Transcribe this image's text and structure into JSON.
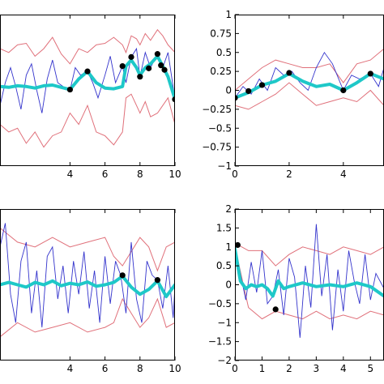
{
  "chart_data": [
    {
      "type": "line",
      "panel": "top-left",
      "xlim": [
        0,
        10
      ],
      "ylim": [
        -1,
        1
      ],
      "xticks": [
        4,
        6,
        8,
        10
      ],
      "yticks": [],
      "observations": {
        "x": [
          4,
          5,
          7,
          7.5,
          8,
          8.5,
          9,
          9.2,
          9.4,
          10
        ],
        "y": [
          0.01,
          0.25,
          0.32,
          0.44,
          0.18,
          0.29,
          0.48,
          0.33,
          0.27,
          -0.12
        ]
      },
      "series": [
        {
          "role": "upper-band",
          "x": [
            0,
            0.5,
            1,
            1.5,
            2,
            2.5,
            3,
            3.5,
            4,
            4.5,
            5,
            5.5,
            6,
            6.5,
            7,
            7.2,
            7.5,
            7.8,
            8,
            8.3,
            8.6,
            9,
            9.3,
            9.6,
            10
          ],
          "y": [
            0.55,
            0.5,
            0.6,
            0.62,
            0.45,
            0.55,
            0.7,
            0.48,
            0.35,
            0.55,
            0.5,
            0.6,
            0.62,
            0.7,
            0.6,
            0.5,
            0.72,
            0.68,
            0.6,
            0.75,
            0.66,
            0.8,
            0.72,
            0.6,
            0.5
          ]
        },
        {
          "role": "lower-band",
          "x": [
            0,
            0.5,
            1,
            1.5,
            2,
            2.5,
            3,
            3.5,
            4,
            4.5,
            5,
            5.5,
            6,
            6.5,
            7,
            7.2,
            7.5,
            7.8,
            8,
            8.3,
            8.6,
            9,
            9.3,
            9.6,
            10
          ],
          "y": [
            -0.45,
            -0.55,
            -0.5,
            -0.7,
            -0.55,
            -0.75,
            -0.6,
            -0.55,
            -0.3,
            -0.45,
            -0.2,
            -0.55,
            -0.6,
            -0.72,
            -0.55,
            -0.1,
            -0.05,
            -0.2,
            -0.3,
            -0.15,
            -0.35,
            -0.3,
            -0.2,
            -0.1,
            -0.45
          ]
        },
        {
          "role": "sample",
          "x": [
            0,
            0.3,
            0.6,
            0.9,
            1.2,
            1.5,
            1.8,
            2.1,
            2.4,
            2.7,
            3,
            3.3,
            3.6,
            4,
            4.3,
            4.6,
            5,
            5.3,
            5.6,
            6,
            6.3,
            6.6,
            7,
            7.2,
            7.5,
            7.8,
            8,
            8.3,
            8.6,
            9,
            9.3,
            9.6,
            10
          ],
          "y": [
            -0.2,
            0.1,
            0.3,
            0.05,
            -0.25,
            0.2,
            0.35,
            0,
            -0.3,
            0.15,
            0.4,
            0.1,
            0.05,
            0.0,
            0.3,
            0.2,
            0.25,
            0.1,
            -0.1,
            0.2,
            0.45,
            0.1,
            0.32,
            0.1,
            0.44,
            0.55,
            0.18,
            0.5,
            0.3,
            0.48,
            0.3,
            0.5,
            -0.12
          ]
        },
        {
          "role": "mean",
          "x": [
            0,
            0.5,
            1,
            1.5,
            2,
            2.5,
            3,
            3.5,
            4,
            4.5,
            5,
            5.5,
            6,
            6.5,
            7,
            7.2,
            7.5,
            7.8,
            8,
            8.3,
            8.6,
            9,
            9.3,
            9.6,
            10
          ],
          "y": [
            0.05,
            0.04,
            0.06,
            0.05,
            0.03,
            0.06,
            0.07,
            0.04,
            0.01,
            0.15,
            0.25,
            0.1,
            0.03,
            0.02,
            0.05,
            0.32,
            0.4,
            0.3,
            0.2,
            0.3,
            0.35,
            0.45,
            0.32,
            0.18,
            -0.12
          ]
        }
      ]
    },
    {
      "type": "line",
      "panel": "top-right",
      "xlim": [
        0,
        5.5
      ],
      "ylim": [
        -1,
        1
      ],
      "xticks": [
        0,
        2,
        4
      ],
      "xtick_labels": [
        "0",
        "2",
        "4"
      ],
      "yticks": [
        -1,
        -0.75,
        -0.5,
        -0.25,
        0,
        0.25,
        0.5,
        0.75,
        1
      ],
      "ytick_labels": [
        "−1",
        "−0.75",
        "−0.5",
        "−0.25",
        "0",
        "0.25",
        "0.5",
        "0.75",
        "1"
      ],
      "observations": {
        "x": [
          0,
          0.5,
          1,
          2,
          4,
          5
        ],
        "y": [
          -0.1,
          -0.01,
          0.07,
          0.23,
          0.0,
          0.22
        ]
      },
      "series": [
        {
          "role": "upper-band",
          "x": [
            0,
            0.5,
            1,
            1.5,
            2,
            2.5,
            3,
            3.5,
            4,
            4.5,
            5,
            5.5
          ],
          "y": [
            0.0,
            0.15,
            0.3,
            0.4,
            0.35,
            0.3,
            0.3,
            0.35,
            0.1,
            0.35,
            0.4,
            0.55
          ]
        },
        {
          "role": "lower-band",
          "x": [
            0,
            0.5,
            1,
            1.5,
            2,
            2.5,
            3,
            3.5,
            4,
            4.5,
            5,
            5.5
          ],
          "y": [
            -0.2,
            -0.25,
            -0.15,
            -0.05,
            0.1,
            -0.05,
            -0.2,
            -0.15,
            -0.1,
            -0.15,
            0.0,
            -0.2
          ]
        },
        {
          "role": "sample",
          "x": [
            0,
            0.3,
            0.6,
            0.9,
            1.2,
            1.5,
            1.8,
            2.1,
            2.4,
            2.7,
            3,
            3.3,
            3.6,
            4,
            4.3,
            4.6,
            5,
            5.3,
            5.5
          ],
          "y": [
            -0.1,
            0.05,
            -0.05,
            0.15,
            0.0,
            0.3,
            0.2,
            0.25,
            0.1,
            0.0,
            0.3,
            0.5,
            0.35,
            0.0,
            0.2,
            0.15,
            0.22,
            0.05,
            0.3
          ]
        },
        {
          "role": "mean",
          "x": [
            0,
            0.5,
            1,
            1.5,
            2,
            2.5,
            3,
            3.5,
            4,
            4.5,
            5,
            5.5
          ],
          "y": [
            -0.1,
            -0.03,
            0.07,
            0.12,
            0.22,
            0.12,
            0.05,
            0.08,
            0.0,
            0.1,
            0.22,
            0.15
          ]
        }
      ]
    },
    {
      "type": "line",
      "panel": "bottom-left",
      "xlim": [
        0,
        10
      ],
      "ylim": [
        -1.6,
        1.6
      ],
      "xticks": [
        4,
        6,
        8,
        10
      ],
      "yticks": [],
      "observations": {
        "x": [
          7,
          9
        ],
        "y": [
          0.2,
          0.1
        ]
      },
      "series": [
        {
          "role": "upper-band",
          "x": [
            0,
            1,
            2,
            3,
            4,
            5,
            6,
            6.5,
            7,
            7.5,
            8,
            8.5,
            9,
            9.5,
            10
          ],
          "y": [
            1.2,
            0.9,
            0.8,
            1.0,
            0.8,
            0.9,
            1.0,
            0.6,
            0.4,
            0.7,
            1.0,
            0.8,
            0.3,
            0.8,
            0.9
          ]
        },
        {
          "role": "lower-band",
          "x": [
            0,
            1,
            2,
            3,
            4,
            5,
            6,
            6.5,
            7,
            7.5,
            8,
            8.5,
            9,
            9.5,
            10
          ],
          "y": [
            -1.1,
            -0.8,
            -1.0,
            -0.9,
            -0.8,
            -1.0,
            -0.9,
            -0.8,
            -0.3,
            -0.6,
            -0.9,
            -0.7,
            -0.3,
            -0.9,
            -0.8
          ]
        },
        {
          "role": "sample",
          "x": [
            0,
            0.3,
            0.6,
            0.9,
            1.2,
            1.5,
            1.8,
            2.1,
            2.4,
            2.7,
            3,
            3.3,
            3.6,
            3.9,
            4.2,
            4.5,
            4.8,
            5.1,
            5.4,
            5.7,
            6,
            6.3,
            6.6,
            6.9,
            7.2,
            7.5,
            7.8,
            8.1,
            8.4,
            8.7,
            9,
            9.3,
            9.6,
            9.9,
            10
          ],
          "y": [
            0.8,
            1.3,
            -0.2,
            -0.8,
            0.5,
            0.9,
            -0.6,
            0.3,
            -0.9,
            0.6,
            0.8,
            -0.3,
            0.4,
            -0.6,
            0.5,
            -0.2,
            0.7,
            -0.5,
            0.3,
            -0.8,
            0.6,
            -0.4,
            0.5,
            0.2,
            -0.6,
            0.9,
            -0.3,
            -0.8,
            0.5,
            0.2,
            0.1,
            -0.5,
            0.4,
            -0.7,
            0.0
          ]
        },
        {
          "role": "mean",
          "x": [
            0,
            0.5,
            1,
            1.5,
            2,
            2.5,
            3,
            3.5,
            4,
            4.5,
            5,
            5.5,
            6,
            6.5,
            7,
            7.5,
            8,
            8.5,
            9,
            9.5,
            10
          ],
          "y": [
            0.0,
            0.05,
            0.0,
            -0.05,
            0.05,
            0.0,
            0.08,
            -0.02,
            0.03,
            0.0,
            0.06,
            -0.03,
            0.0,
            0.05,
            0.18,
            -0.05,
            -0.2,
            -0.1,
            0.08,
            -0.25,
            0.0
          ]
        }
      ]
    },
    {
      "type": "line",
      "panel": "bottom-right",
      "xlim": [
        0,
        5.5
      ],
      "ylim": [
        -2,
        2
      ],
      "xticks": [
        0,
        1,
        2,
        3,
        4,
        5
      ],
      "xtick_labels": [
        "0",
        "1",
        "2",
        "3",
        "4",
        "5"
      ],
      "yticks": [
        -2,
        -1.5,
        -1,
        -0.5,
        0,
        0.5,
        1,
        1.5,
        2
      ],
      "ytick_labels": [
        "−2",
        "−1.5",
        "−1",
        "−0.5",
        "0",
        "0.5",
        "1",
        "1.5",
        "2"
      ],
      "observations": {
        "x": [
          0.1,
          1.5
        ],
        "y": [
          1.05,
          -0.65
        ]
      },
      "series": [
        {
          "role": "upper-band",
          "x": [
            0,
            0.5,
            1,
            1.5,
            2,
            2.5,
            3,
            3.5,
            4,
            4.5,
            5,
            5.5
          ],
          "y": [
            1.1,
            0.9,
            0.9,
            0.5,
            0.8,
            1.0,
            0.9,
            0.8,
            1.0,
            0.9,
            0.8,
            1.0
          ]
        },
        {
          "role": "lower-band",
          "x": [
            0,
            0.5,
            1,
            1.5,
            2,
            2.5,
            3,
            3.5,
            4,
            4.5,
            5,
            5.5
          ],
          "y": [
            1.0,
            -0.6,
            -0.9,
            -0.7,
            -0.8,
            -0.9,
            -0.7,
            -0.9,
            -0.8,
            -0.9,
            -0.7,
            -0.8
          ]
        },
        {
          "role": "sample",
          "x": [
            0,
            0.2,
            0.4,
            0.6,
            0.8,
            1,
            1.2,
            1.4,
            1.6,
            1.8,
            2,
            2.2,
            2.4,
            2.6,
            2.8,
            3,
            3.2,
            3.4,
            3.6,
            3.8,
            4,
            4.2,
            4.4,
            4.6,
            4.8,
            5,
            5.2,
            5.5
          ],
          "y": [
            1.05,
            0.3,
            -0.4,
            0.6,
            -0.2,
            0.9,
            -0.5,
            -0.3,
            0.4,
            -0.8,
            0.7,
            0.2,
            -1.4,
            0.5,
            -0.6,
            1.6,
            -0.3,
            0.8,
            -1.2,
            0.4,
            -0.7,
            0.9,
            0.1,
            -0.5,
            0.8,
            -0.4,
            0.3,
            -0.1
          ]
        },
        {
          "role": "mean",
          "x": [
            0,
            0.2,
            0.4,
            0.6,
            0.8,
            1,
            1.2,
            1.4,
            1.6,
            1.8,
            2,
            2.5,
            3,
            3.5,
            4,
            4.5,
            5,
            5.5
          ],
          "y": [
            0.95,
            0.1,
            -0.1,
            0.0,
            -0.05,
            0.0,
            -0.1,
            -0.3,
            0.1,
            -0.1,
            -0.05,
            0.05,
            -0.05,
            0.0,
            -0.05,
            0.05,
            -0.05,
            -0.3
          ]
        }
      ]
    }
  ]
}
